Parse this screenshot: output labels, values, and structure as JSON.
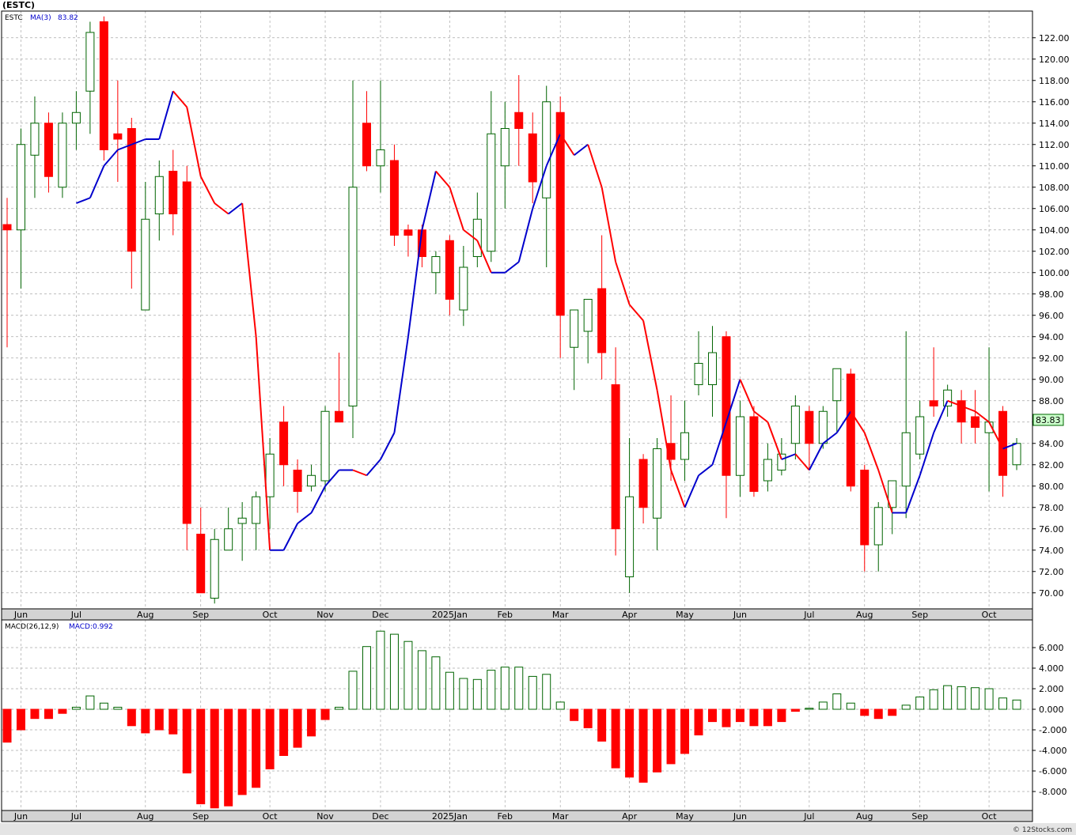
{
  "header": {
    "symbol": "(ESTC)"
  },
  "price_panel": {
    "legend_symbol": "ESTC",
    "legend_ma": "MA(3)",
    "legend_ma_value": "83.82",
    "last_price_tag": "83.83"
  },
  "macd_panel": {
    "legend_params": "MACD(26,12,9)",
    "legend_value": "MACD:0.992"
  },
  "footer": {
    "watermark": "© 12Stocks.com"
  },
  "colors": {
    "up": "#006400",
    "down": "#ff0000",
    "ma_up": "#0000cc",
    "ma_down": "#ff0000",
    "grid": "#a9a9a9",
    "axis_bg": "#d3d3d3",
    "price_tag_bg": "#ccffcc"
  },
  "chart_data": [
    {
      "type": "candlestick",
      "title": "(ESTC)",
      "interval": "weekly",
      "ylim": [
        68.5,
        124.5
      ],
      "y_ticks": [
        "70.00",
        "72.00",
        "74.00",
        "76.00",
        "78.00",
        "80.00",
        "82.00",
        "84.00",
        "86.00",
        "88.00",
        "90.00",
        "92.00",
        "94.00",
        "96.00",
        "98.00",
        "100.00",
        "102.00",
        "104.00",
        "106.00",
        "108.00",
        "110.00",
        "112.00",
        "114.00",
        "116.00",
        "118.00",
        "120.00",
        "122.00"
      ],
      "x_tick_labels": [
        "Jun",
        "Jul",
        "Aug",
        "Sep",
        "Oct",
        "Nov",
        "Dec",
        "2025Jan",
        "Feb",
        "Mar",
        "Apr",
        "May",
        "Jun",
        "Jul",
        "Aug",
        "Sep",
        "Oct"
      ],
      "x_tick_week_index": [
        1,
        5,
        10,
        14,
        19,
        23,
        27,
        32,
        36,
        40,
        45,
        49,
        53,
        58,
        62,
        66,
        71
      ],
      "grid": true,
      "candles": [
        {
          "o": 104.5,
          "h": 107.0,
          "l": 93.0,
          "c": 104.0
        },
        {
          "o": 104.0,
          "h": 113.5,
          "l": 98.5,
          "c": 112.0
        },
        {
          "o": 111.0,
          "h": 116.5,
          "l": 107.0,
          "c": 114.0
        },
        {
          "o": 114.0,
          "h": 115.0,
          "l": 107.5,
          "c": 109.0
        },
        {
          "o": 108.0,
          "h": 115.0,
          "l": 107.0,
          "c": 114.0
        },
        {
          "o": 114.0,
          "h": 117.0,
          "l": 111.5,
          "c": 115.0
        },
        {
          "o": 117.0,
          "h": 123.5,
          "l": 113.0,
          "c": 122.5
        },
        {
          "o": 123.5,
          "h": 124.0,
          "l": 110.5,
          "c": 111.5
        },
        {
          "o": 113.0,
          "h": 118.0,
          "l": 108.5,
          "c": 112.5
        },
        {
          "o": 113.5,
          "h": 114.5,
          "l": 98.5,
          "c": 102.0
        },
        {
          "o": 96.5,
          "h": 108.5,
          "l": 96.5,
          "c": 105.0
        },
        {
          "o": 105.5,
          "h": 110.5,
          "l": 103.0,
          "c": 109.0
        },
        {
          "o": 109.5,
          "h": 111.5,
          "l": 103.5,
          "c": 105.5
        },
        {
          "o": 108.5,
          "h": 110.0,
          "l": 74.0,
          "c": 76.5
        },
        {
          "o": 75.5,
          "h": 78.0,
          "l": 70.0,
          "c": 70.0
        },
        {
          "o": 69.5,
          "h": 76.0,
          "l": 69.0,
          "c": 75.0
        },
        {
          "o": 74.0,
          "h": 78.0,
          "l": 74.0,
          "c": 76.0
        },
        {
          "o": 76.5,
          "h": 78.5,
          "l": 73.0,
          "c": 77.0
        },
        {
          "o": 76.5,
          "h": 79.5,
          "l": 74.0,
          "c": 79.0
        },
        {
          "o": 79.0,
          "h": 84.5,
          "l": 76.0,
          "c": 83.0
        },
        {
          "o": 86.0,
          "h": 87.5,
          "l": 80.0,
          "c": 82.0
        },
        {
          "o": 81.5,
          "h": 82.5,
          "l": 77.5,
          "c": 79.5
        },
        {
          "o": 80.0,
          "h": 82.0,
          "l": 79.5,
          "c": 81.0
        },
        {
          "o": 80.5,
          "h": 87.5,
          "l": 79.5,
          "c": 87.0
        },
        {
          "o": 87.0,
          "h": 92.5,
          "l": 86.0,
          "c": 86.0
        },
        {
          "o": 87.5,
          "h": 118.0,
          "l": 84.5,
          "c": 108.0
        },
        {
          "o": 114.0,
          "h": 117.0,
          "l": 109.5,
          "c": 110.0
        },
        {
          "o": 110.0,
          "h": 118.0,
          "l": 107.5,
          "c": 111.5
        },
        {
          "o": 110.5,
          "h": 112.0,
          "l": 102.5,
          "c": 103.5
        },
        {
          "o": 104.0,
          "h": 104.5,
          "l": 101.5,
          "c": 103.5
        },
        {
          "o": 104.0,
          "h": 104.5,
          "l": 100.5,
          "c": 101.5
        },
        {
          "o": 100.0,
          "h": 102.0,
          "l": 98.0,
          "c": 101.5
        },
        {
          "o": 103.0,
          "h": 103.5,
          "l": 96.0,
          "c": 97.5
        },
        {
          "o": 96.5,
          "h": 102.5,
          "l": 95.0,
          "c": 100.5
        },
        {
          "o": 101.5,
          "h": 107.5,
          "l": 100.5,
          "c": 105.0
        },
        {
          "o": 102.0,
          "h": 117.0,
          "l": 101.0,
          "c": 113.0
        },
        {
          "o": 110.0,
          "h": 116.0,
          "l": 106.0,
          "c": 113.5
        },
        {
          "o": 115.0,
          "h": 118.5,
          "l": 110.0,
          "c": 113.5
        },
        {
          "o": 113.0,
          "h": 115.0,
          "l": 106.5,
          "c": 108.5
        },
        {
          "o": 107.0,
          "h": 117.5,
          "l": 100.5,
          "c": 116.0
        },
        {
          "o": 115.0,
          "h": 116.5,
          "l": 92.0,
          "c": 96.0
        },
        {
          "o": 93.0,
          "h": 96.0,
          "l": 89.0,
          "c": 96.5
        },
        {
          "o": 94.5,
          "h": 97.5,
          "l": 91.5,
          "c": 97.5
        },
        {
          "o": 98.5,
          "h": 103.5,
          "l": 90.0,
          "c": 92.5
        },
        {
          "o": 89.5,
          "h": 93.0,
          "l": 73.5,
          "c": 76.0
        },
        {
          "o": 71.5,
          "h": 84.5,
          "l": 70.0,
          "c": 79.0
        },
        {
          "o": 82.5,
          "h": 83.0,
          "l": 76.5,
          "c": 78.0
        },
        {
          "o": 77.0,
          "h": 84.5,
          "l": 74.0,
          "c": 83.5
        },
        {
          "o": 84.0,
          "h": 88.5,
          "l": 80.5,
          "c": 82.5
        },
        {
          "o": 82.5,
          "h": 88.0,
          "l": 80.5,
          "c": 85.0
        },
        {
          "o": 89.5,
          "h": 94.5,
          "l": 88.5,
          "c": 91.5
        },
        {
          "o": 89.5,
          "h": 95.0,
          "l": 86.5,
          "c": 92.5
        },
        {
          "o": 94.0,
          "h": 94.5,
          "l": 77.0,
          "c": 81.0
        },
        {
          "o": 81.0,
          "h": 88.0,
          "l": 79.0,
          "c": 86.5
        },
        {
          "o": 86.5,
          "h": 87.5,
          "l": 79.0,
          "c": 79.5
        },
        {
          "o": 80.5,
          "h": 84.0,
          "l": 79.5,
          "c": 82.5
        },
        {
          "o": 81.5,
          "h": 84.5,
          "l": 81.0,
          "c": 83.0
        },
        {
          "o": 84.0,
          "h": 88.5,
          "l": 82.5,
          "c": 87.5
        },
        {
          "o": 87.0,
          "h": 87.5,
          "l": 81.5,
          "c": 84.0
        },
        {
          "o": 84.0,
          "h": 87.5,
          "l": 83.5,
          "c": 87.0
        },
        {
          "o": 88.0,
          "h": 91.0,
          "l": 85.0,
          "c": 91.0
        },
        {
          "o": 90.5,
          "h": 91.0,
          "l": 79.5,
          "c": 80.0
        },
        {
          "o": 81.5,
          "h": 82.0,
          "l": 72.0,
          "c": 74.5
        },
        {
          "o": 74.5,
          "h": 78.5,
          "l": 72.0,
          "c": 78.0
        },
        {
          "o": 78.0,
          "h": 80.5,
          "l": 75.5,
          "c": 80.5
        },
        {
          "o": 80.0,
          "h": 94.5,
          "l": 77.0,
          "c": 85.0
        },
        {
          "o": 83.0,
          "h": 88.0,
          "l": 82.5,
          "c": 86.5
        },
        {
          "o": 88.0,
          "h": 93.0,
          "l": 86.5,
          "c": 87.5
        },
        {
          "o": 87.5,
          "h": 89.5,
          "l": 86.5,
          "c": 89.0
        },
        {
          "o": 88.0,
          "h": 89.0,
          "l": 84.0,
          "c": 86.0
        },
        {
          "o": 86.5,
          "h": 89.0,
          "l": 84.0,
          "c": 85.5
        },
        {
          "o": 85.0,
          "h": 93.0,
          "l": 79.5,
          "c": 86.0
        },
        {
          "o": 87.0,
          "h": 87.5,
          "l": 79.0,
          "c": 81.0
        },
        {
          "o": 82.0,
          "h": 84.5,
          "l": 81.5,
          "c": 84.0
        }
      ],
      "ma3": [
        106.5,
        107.0,
        110.0,
        111.5,
        112.0,
        112.5,
        112.5,
        117.0,
        115.5,
        109.0,
        106.5,
        105.5,
        106.5,
        94.0,
        74.0,
        74.0,
        76.5,
        77.5,
        80.0,
        81.5,
        81.5,
        81.0,
        82.5,
        85.0,
        94.0,
        104.0,
        109.5,
        108.0,
        104.0,
        103.0,
        100.0,
        100.0,
        101.0,
        106.0,
        110.0,
        113.0,
        111.0,
        112.0,
        108.0,
        101.0,
        97.0,
        95.5,
        89.0,
        81.5,
        78.0,
        81.0,
        82.0,
        86.0,
        90.0,
        87.0,
        86.0,
        82.5,
        83.0,
        81.5,
        84.0,
        85.0,
        87.0,
        85.0,
        81.5,
        77.5,
        77.5,
        81.0,
        85.0,
        88.0,
        87.5,
        87.0,
        86.0,
        83.5,
        84.0
      ]
    },
    {
      "type": "bar",
      "title": "MACD(26,12,9)",
      "ylim": [
        -10.0,
        8.0
      ],
      "y_ticks": [
        "-8.000",
        "-6.000",
        "-4.000",
        "-2.000",
        "0.000",
        "2.000",
        "4.000",
        "6.000"
      ],
      "x_tick_labels": [
        "Jun",
        "Jul",
        "Aug",
        "Sep",
        "Oct",
        "Nov",
        "Dec",
        "2025Jan",
        "Feb",
        "Mar",
        "Apr",
        "May",
        "Jun",
        "Jul",
        "Aug",
        "Sep",
        "Oct"
      ],
      "x_tick_week_index": [
        1,
        5,
        10,
        14,
        19,
        23,
        27,
        32,
        36,
        40,
        45,
        49,
        53,
        58,
        62,
        66,
        71
      ],
      "grid": true,
      "values": [
        -3.2,
        -2.0,
        -0.9,
        -0.9,
        -0.4,
        0.2,
        1.3,
        0.6,
        0.2,
        -1.6,
        -2.3,
        -2.0,
        -2.4,
        -6.2,
        -9.2,
        -9.6,
        -9.4,
        -8.3,
        -7.6,
        -5.8,
        -4.5,
        -3.7,
        -2.6,
        -1.0,
        0.2,
        3.7,
        6.1,
        7.6,
        7.3,
        6.6,
        5.7,
        5.1,
        3.6,
        3.0,
        2.9,
        3.8,
        4.1,
        4.1,
        3.2,
        3.4,
        0.7,
        -1.1,
        -1.8,
        -3.1,
        -5.7,
        -6.6,
        -7.1,
        -6.1,
        -5.3,
        -4.3,
        -2.5,
        -1.2,
        -1.7,
        -1.2,
        -1.6,
        -1.6,
        -1.2,
        -0.2,
        0.1,
        0.7,
        1.5,
        0.6,
        -0.6,
        -0.9,
        -0.6,
        0.4,
        1.2,
        1.9,
        2.3,
        2.2,
        2.1,
        2.0,
        1.1,
        0.9
      ]
    }
  ]
}
